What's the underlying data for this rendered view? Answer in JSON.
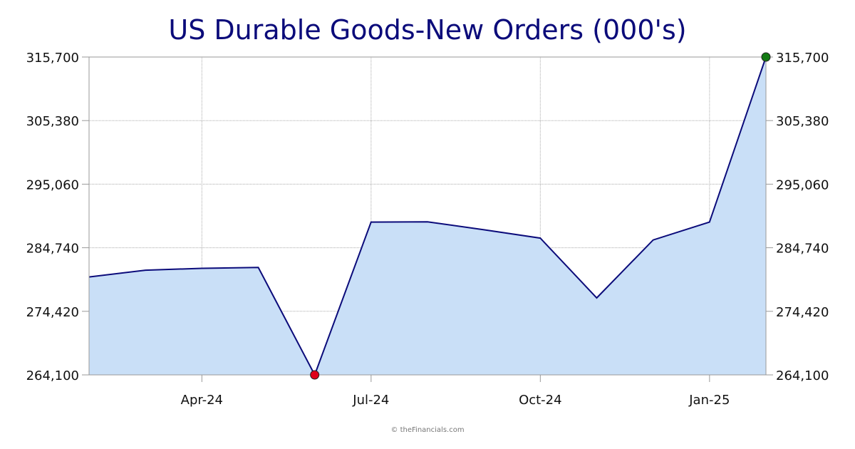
{
  "chart_data": {
    "type": "area",
    "title": "US Durable Goods-New Orders (000's)",
    "xlabel": "",
    "ylabel": "",
    "x": [
      "2024-02",
      "2024-03",
      "2024-04",
      "2024-05",
      "2024-06",
      "2024-07",
      "2024-08",
      "2024-09",
      "2024-10",
      "2024-11",
      "2024-12",
      "2025-01",
      "2025-02"
    ],
    "values": [
      280000,
      281100,
      281400,
      281550,
      264100,
      288900,
      288950,
      287650,
      286300,
      276600,
      286000,
      288900,
      315700
    ],
    "ylim": [
      264100,
      315700
    ],
    "yticks": [
      "264,100",
      "274,420",
      "284,740",
      "295,060",
      "305,380",
      "315,700"
    ],
    "xticks": [
      {
        "label": "Apr-24",
        "x": "2024-04"
      },
      {
        "label": "Jul-24",
        "x": "2024-07"
      },
      {
        "label": "Oct-24",
        "x": "2024-10"
      },
      {
        "label": "Jan-25",
        "x": "2025-01"
      }
    ],
    "grid": true,
    "line_color": "#0b0b7a",
    "fill_color": "#c9dff7",
    "min_marker_color": "#e0001a",
    "max_marker_color": "#137a13"
  },
  "watermark": "© theFinancials.com"
}
